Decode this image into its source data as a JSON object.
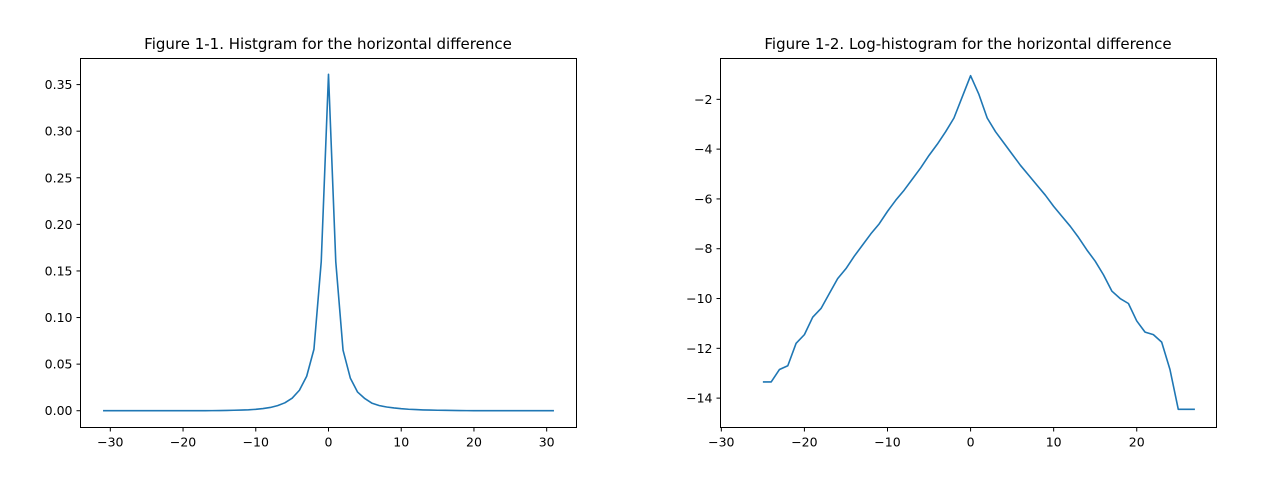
{
  "chart_data": [
    {
      "type": "line",
      "title": "Figure 1-1. Histgram for the horizontal difference",
      "xlabel": "",
      "ylabel": "",
      "xlim": [
        -34.1,
        34.1
      ],
      "ylim": [
        -0.018,
        0.378
      ],
      "xticks": [
        -30,
        -20,
        -10,
        0,
        10,
        20,
        30
      ],
      "xtick_labels": [
        "−30",
        "−20",
        "−10",
        "0",
        "10",
        "20",
        "30"
      ],
      "yticks": [
        0.0,
        0.05,
        0.1,
        0.15,
        0.2,
        0.25,
        0.3,
        0.35
      ],
      "ytick_labels": [
        "0.00",
        "0.05",
        "0.10",
        "0.15",
        "0.20",
        "0.25",
        "0.30",
        "0.35"
      ],
      "grid": false,
      "color": "#1f77b4",
      "series": [
        {
          "x": [
            -31,
            -30,
            -29,
            -28,
            -27,
            -26,
            -25,
            -24,
            -23,
            -22,
            -21,
            -20,
            -19,
            -18,
            -17,
            -16,
            -15,
            -14,
            -13,
            -12,
            -11,
            -10,
            -9,
            -8,
            -7,
            -6,
            -5,
            -4,
            -3,
            -2,
            -1,
            0,
            1,
            2,
            3,
            4,
            5,
            6,
            7,
            8,
            9,
            10,
            11,
            12,
            13,
            14,
            15,
            16,
            17,
            18,
            19,
            20,
            21,
            22,
            23,
            24,
            25,
            26,
            27,
            28,
            29,
            30,
            31
          ],
          "y": [
            0,
            0,
            0,
            0,
            0,
            0,
            0,
            0,
            0,
            0,
            0,
            0,
            0,
            0,
            0,
            0.0001,
            0.0002,
            0.0003,
            0.0005,
            0.0007,
            0.001,
            0.0015,
            0.0023,
            0.0035,
            0.0055,
            0.0085,
            0.0135,
            0.022,
            0.037,
            0.066,
            0.16,
            0.361,
            0.16,
            0.065,
            0.035,
            0.02,
            0.013,
            0.008,
            0.0055,
            0.004,
            0.003,
            0.0022,
            0.0016,
            0.0012,
            0.0009,
            0.0007,
            0.0005,
            0.0004,
            0.0003,
            0.0002,
            0.0001,
            0,
            0,
            0,
            0,
            0,
            0,
            0,
            0,
            0,
            0,
            0,
            0
          ]
        }
      ]
    },
    {
      "type": "line",
      "title": "Figure 1-2. Log-histogram for the horizontal difference",
      "xlabel": "",
      "ylabel": "",
      "xlim": [
        -30.1,
        29.6
      ],
      "ylim": [
        -15.18,
        -0.36
      ],
      "xticks": [
        -30,
        -20,
        -10,
        0,
        10,
        20
      ],
      "xtick_labels": [
        "−30",
        "−20",
        "−10",
        "0",
        "10",
        "20"
      ],
      "yticks": [
        -14,
        -12,
        -10,
        -8,
        -6,
        -4,
        -2
      ],
      "ytick_labels": [
        "−14",
        "−12",
        "−10",
        "−8",
        "−6",
        "−4",
        "−2"
      ],
      "grid": false,
      "color": "#1f77b4",
      "series": [
        {
          "x": [
            -25,
            -24,
            -23,
            -22,
            -21,
            -20,
            -19,
            -18,
            -17,
            -16,
            -15,
            -14,
            -13,
            -12,
            -11,
            -10,
            -9,
            -8,
            -7,
            -6,
            -5,
            -4,
            -3,
            -2,
            -1,
            0,
            1,
            2,
            3,
            4,
            5,
            6,
            7,
            8,
            9,
            10,
            11,
            12,
            13,
            14,
            15,
            16,
            17,
            18,
            19,
            20,
            21,
            22,
            23,
            24,
            25,
            26,
            27
          ],
          "y": [
            -13.35,
            -13.35,
            -12.85,
            -12.7,
            -11.8,
            -11.45,
            -10.75,
            -10.4,
            -9.8,
            -9.2,
            -8.8,
            -8.3,
            -7.85,
            -7.4,
            -7.0,
            -6.5,
            -6.05,
            -5.65,
            -5.2,
            -4.75,
            -4.25,
            -3.8,
            -3.3,
            -2.75,
            -1.9,
            -1.05,
            -1.8,
            -2.75,
            -3.3,
            -3.75,
            -4.2,
            -4.65,
            -5.05,
            -5.45,
            -5.85,
            -6.3,
            -6.7,
            -7.1,
            -7.55,
            -8.05,
            -8.5,
            -9.05,
            -9.7,
            -10.0,
            -10.2,
            -10.9,
            -11.35,
            -11.45,
            -11.75,
            -12.85,
            -14.45,
            -14.45,
            -14.45
          ]
        }
      ]
    }
  ]
}
